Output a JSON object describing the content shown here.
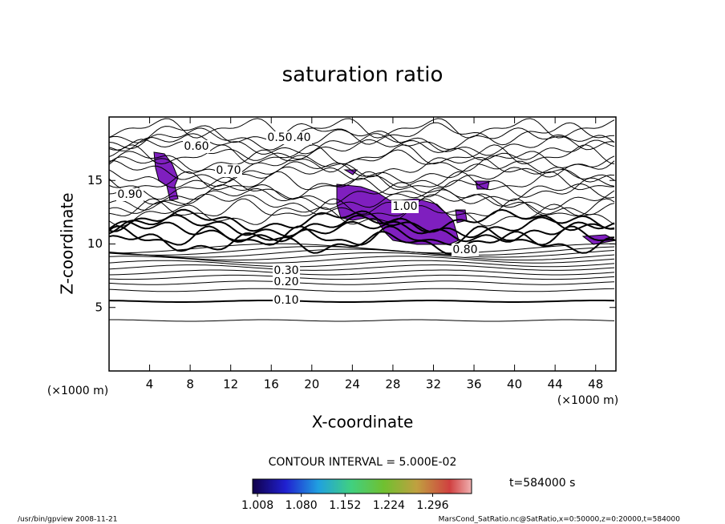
{
  "chart_data": {
    "type": "contour",
    "title": "saturation ratio",
    "x_label": "X-coordinate",
    "y_label": "Z-coordinate",
    "x_unit": "(×1000 m)",
    "y_unit": "(×1000 m)",
    "xlim": [
      0,
      50
    ],
    "xticks": [
      4,
      8,
      12,
      16,
      20,
      24,
      28,
      32,
      36,
      40,
      44,
      48
    ],
    "ylim": [
      0,
      20
    ],
    "yticks": [
      5,
      10,
      15
    ],
    "contour_labels": [
      "0.10",
      "0.20",
      "0.30",
      "0.40",
      "0.50",
      "0.60",
      "0.70",
      "0.80",
      "0.90",
      "1.00"
    ],
    "contour_interval": "CONTOUR INTERVAL = 5.000E-02",
    "time_label": "t=584000 s",
    "colorbar": {
      "lim": [
        1.0,
        1.36
      ],
      "ticks": [
        1.008,
        {
          "value": 1.08,
          "label": "1.080"
        },
        1.152,
        1.224,
        1.296
      ]
    },
    "footer_left": "/usr/bin/gpview  2008-11-21",
    "footer_right": "MarsCond_SatRatio.nc@SatRatio,x=0:50000,z=0:20000,t=584000"
  }
}
